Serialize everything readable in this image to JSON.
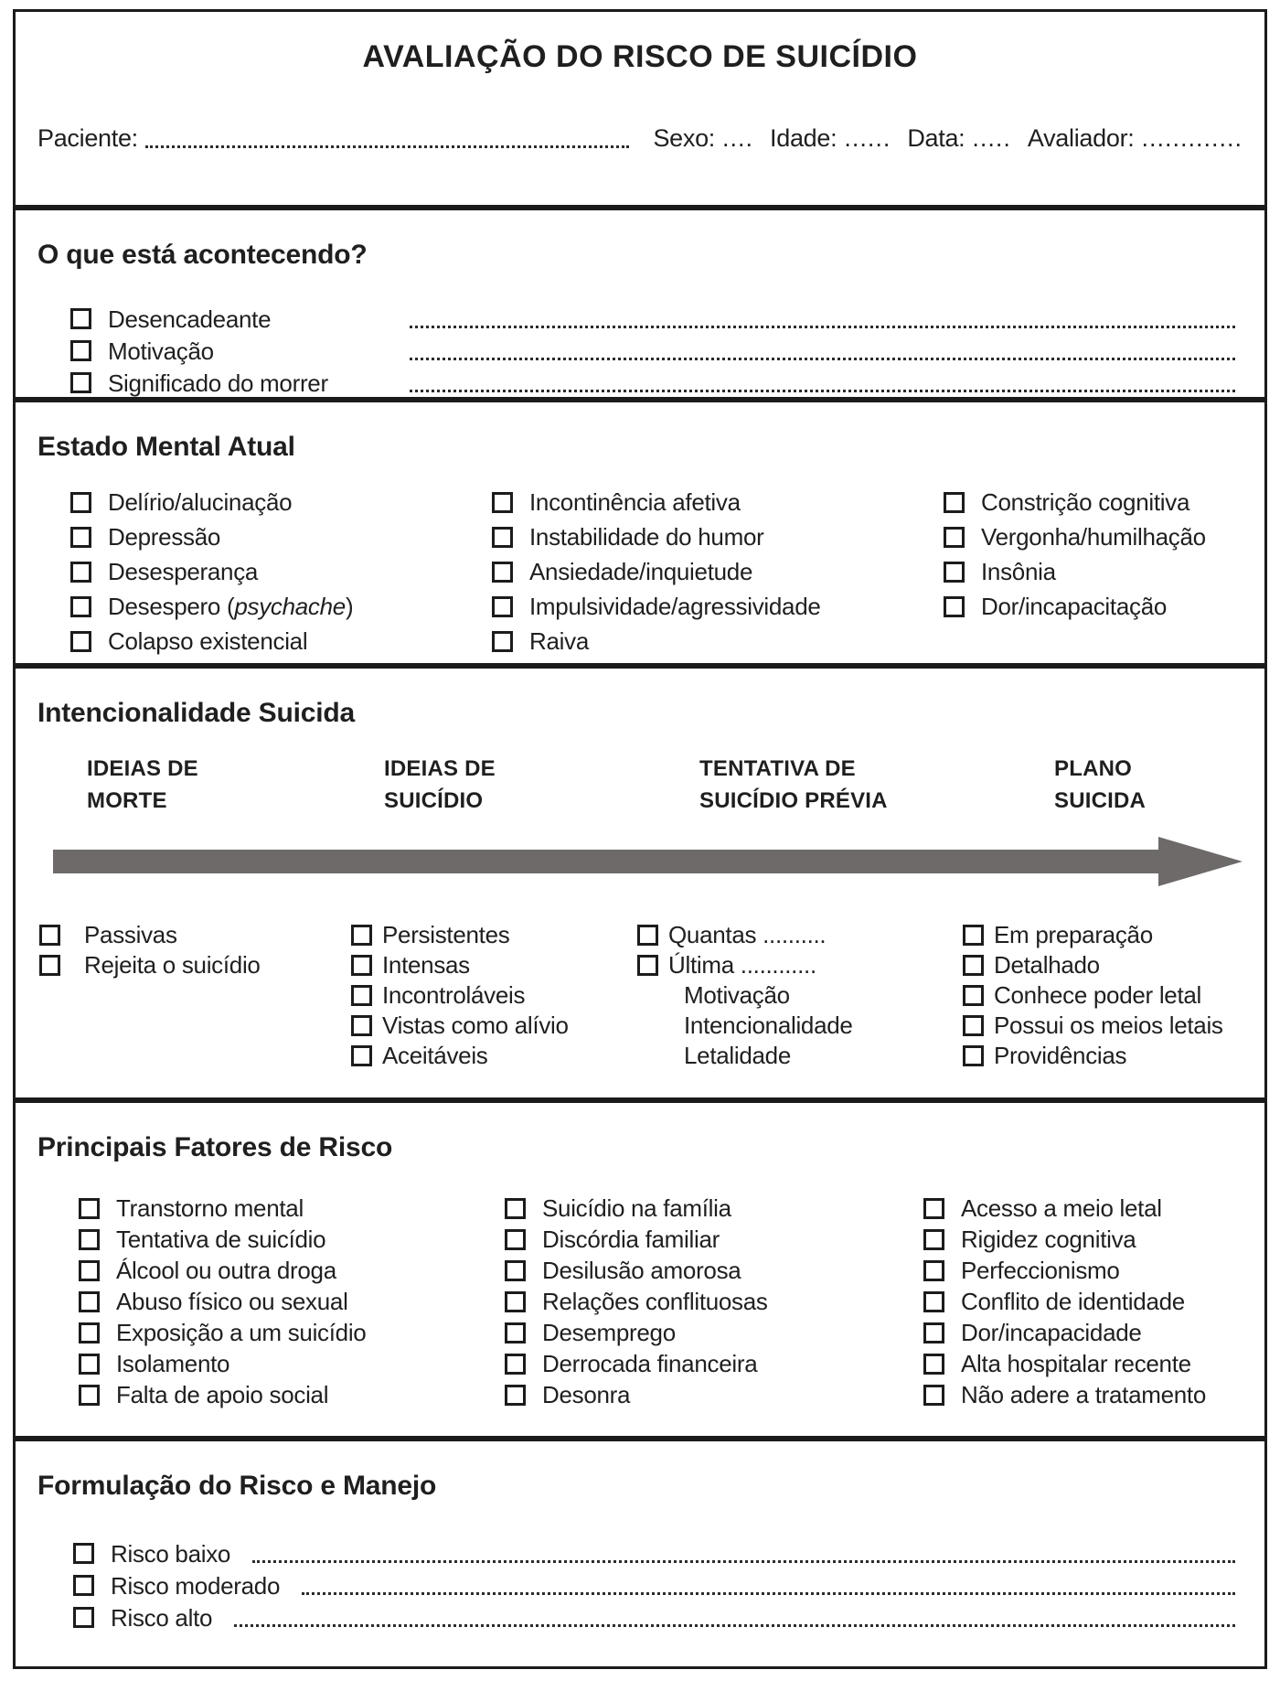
{
  "title": "AVALIAÇÃO DO RISCO DE SUICÍDIO",
  "patient": {
    "paciente": "Paciente:",
    "sexo": "Sexo:",
    "sexo_dots": "....",
    "idade": "Idade:",
    "idade_dots": "......",
    "data": "Data:",
    "data_dots": ".....",
    "avaliador": "Avaliador:",
    "avaliador_dots": "............."
  },
  "happening": {
    "heading": "O que está acontecendo?",
    "items": [
      "Desencadeante",
      "Motivação",
      "Significado do morrer"
    ]
  },
  "mental": {
    "heading": "Estado Mental Atual",
    "col1": [
      "Delírio/alucinação",
      "Depressão",
      "Desesperança"
    ],
    "desespero": {
      "prefix": "Desespero (",
      "italic": "psychache",
      "suffix": ")"
    },
    "col1_last": "Colapso existencial",
    "col2": [
      "Incontinência afetiva",
      "Instabilidade do humor",
      "Ansiedade/inquietude",
      "Impulsividade/agressividade",
      "Raiva"
    ],
    "col3": [
      "Constrição cognitiva",
      "Vergonha/humilhação",
      "Insônia",
      "Dor/incapacitação"
    ]
  },
  "intent": {
    "heading": "Intencionalidade Suicida",
    "stages": [
      {
        "l1": "IDEIAS DE",
        "l2": "MORTE"
      },
      {
        "l1": "IDEIAS DE",
        "l2": "SUICÍDIO"
      },
      {
        "l1": "TENTATIVA DE",
        "l2": "SUICÍDIO PRÉVIA"
      },
      {
        "l1": "PLANO",
        "l2": "SUICIDA"
      }
    ],
    "arrow_color": "#6e6a6a",
    "col1": [
      "Passivas",
      "Rejeita o suicídio"
    ],
    "col2": [
      "Persistentes",
      "Intensas",
      "Incontroláveis",
      "Vistas como alívio",
      "Aceitáveis"
    ],
    "col3": [
      "Quantas ..........",
      "Última ............"
    ],
    "col3_plain": [
      "Motivação",
      "Intencionalidade",
      "Letalidade"
    ],
    "col4": [
      "Em preparação",
      "Detalhado",
      "Conhece poder letal",
      "Possui os meios letais",
      "Providências"
    ]
  },
  "risk": {
    "heading": "Principais Fatores de Risco",
    "col1": [
      "Transtorno mental",
      "Tentativa de suicídio",
      "Álcool ou outra droga",
      "Abuso físico ou sexual",
      "Exposição a um suicídio",
      "Isolamento",
      "Falta de apoio social"
    ],
    "col2": [
      "Suicídio na família",
      "Discórdia familiar",
      "Desilusão amorosa",
      "Relações conflituosas",
      "Desemprego",
      "Derrocada financeira",
      "Desonra"
    ],
    "col3": [
      "Acesso a meio letal",
      "Rigidez cognitiva",
      "Perfeccionismo",
      "Conflito de identidade",
      "Dor/incapacidade",
      "Alta hospitalar recente",
      "Não adere a tratamento"
    ]
  },
  "formulation": {
    "heading": "Formulação do Risco e Manejo",
    "items": [
      "Risco baixo",
      "Risco moderado",
      "Risco alto"
    ]
  }
}
